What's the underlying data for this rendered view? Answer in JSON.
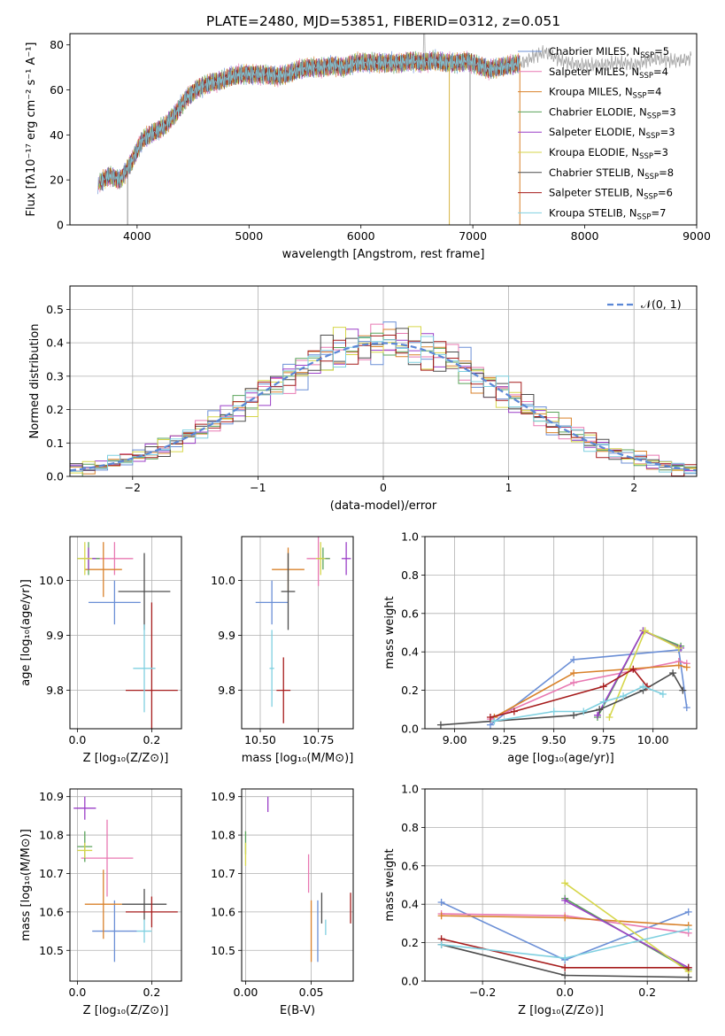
{
  "series_colors": [
    "#6b8fd6",
    "#e879b2",
    "#d9822b",
    "#5aa35a",
    "#9b3fc7",
    "#d6d64a",
    "#4d4d4d",
    "#a61c1c",
    "#7fd0e0"
  ],
  "chart_data": [
    {
      "id": "spectrum",
      "type": "line",
      "title": "PLATE=2480, MJD=53851, FIBERID=0312, z=0.051",
      "xlabel": "wavelength [Angstrom, rest frame]",
      "ylabel": "Flux [fλ10⁻¹⁷ erg cm⁻² s⁻¹ A⁻¹]",
      "xlim": [
        3400,
        9000
      ],
      "ylim": [
        0,
        85
      ],
      "xticks": [
        "4000",
        "5000",
        "6000",
        "7000",
        "8000",
        "9000"
      ],
      "yticks": [
        "0",
        "20",
        "40",
        "60",
        "80"
      ],
      "grid": false,
      "legend_position": "top-right",
      "continuum": {
        "x": [
          3650,
          3750,
          3850,
          3950,
          4050,
          4150,
          4250,
          4350,
          4450,
          4550,
          4650,
          4750,
          4850,
          4950,
          5050,
          5150,
          5250,
          5350,
          5450,
          5550,
          5650,
          5750,
          5850,
          5950,
          6050,
          6150,
          6250,
          6350,
          6450,
          6550,
          6650,
          6750,
          6850,
          6950,
          7050,
          7150,
          7250,
          7350,
          7450,
          7550,
          7650,
          7750,
          7850,
          7950,
          8050,
          8150,
          8250,
          8350,
          8450,
          8550,
          8650,
          8750,
          8850,
          8950
        ],
        "y": [
          18,
          22,
          20,
          28,
          38,
          41,
          44,
          50,
          57,
          61,
          63,
          64,
          66,
          67,
          67,
          67,
          66,
          67,
          69,
          70,
          70,
          71,
          70,
          72,
          72,
          72,
          72,
          72,
          73,
          72,
          73,
          72,
          72,
          73,
          71,
          69,
          70,
          71,
          72,
          75,
          77,
          74,
          72,
          71,
          71,
          71,
          72,
          72,
          71,
          73,
          74,
          73,
          73,
          74
        ]
      },
      "series": [
        {
          "name": "Chabrier MILES, N_SSP=5"
        },
        {
          "name": "Salpeter MILES, N_SSP=4"
        },
        {
          "name": "Kroupa MILES, N_SSP=4"
        },
        {
          "name": "Chabrier ELODIE, N_SSP=3"
        },
        {
          "name": "Salpeter ELODIE, N_SSP=3"
        },
        {
          "name": "Kroupa ELODIE, N_SSP=3"
        },
        {
          "name": "Chabrier STELIB, N_SSP=8"
        },
        {
          "name": "Salpeter STELIB, N_SSP=6"
        },
        {
          "name": "Kroupa STELIB, N_SSP=7"
        }
      ]
    },
    {
      "id": "residuals",
      "type": "line",
      "xlabel": "(data-model)/error",
      "ylabel": "Normed distribution",
      "xlim": [
        -2.5,
        2.5
      ],
      "ylim": [
        0,
        0.57
      ],
      "xticks": [
        "−2",
        "−1",
        "0",
        "1",
        "2"
      ],
      "yticks": [
        "0.0",
        "0.1",
        "0.2",
        "0.3",
        "0.4",
        "0.5"
      ],
      "grid": true,
      "legend_position": "top-right",
      "reference_label": "𝒩(0, 1)",
      "bin_width": 0.1
    },
    {
      "id": "age-vs-Z",
      "type": "scatter",
      "xlabel": "Z [log₁₀(Z/Z⊙)]",
      "ylabel": "age  [log₁₀(age/yr)]",
      "xlim": [
        -0.02,
        0.28
      ],
      "ylim": [
        9.73,
        10.08
      ],
      "xticks": [
        "0.0",
        "0.2"
      ],
      "yticks": [
        "9.8",
        "9.9",
        "10.0"
      ],
      "grid": true,
      "points": [
        {
          "x": 0.1,
          "y": 9.96,
          "xerr": 0.07,
          "yerr": 0.04
        },
        {
          "x": 0.1,
          "y": 10.04,
          "xerr": 0.05,
          "yerr": 0.03
        },
        {
          "x": 0.07,
          "y": 10.02,
          "xerr": 0.05,
          "yerr": 0.05
        },
        {
          "x": 0.03,
          "y": 10.04,
          "xerr": 0.03,
          "yerr": 0.03
        },
        {
          "x": 0.03,
          "y": 10.04,
          "xerr": 0.02,
          "yerr": 0.02
        },
        {
          "x": 0.02,
          "y": 10.04,
          "xerr": 0.02,
          "yerr": 0.03
        },
        {
          "x": 0.18,
          "y": 9.98,
          "xerr": 0.07,
          "yerr": 0.07
        },
        {
          "x": 0.2,
          "y": 9.8,
          "xerr": 0.07,
          "yerr": 0.16
        },
        {
          "x": 0.18,
          "y": 9.84,
          "xerr": 0.03,
          "yerr": 0.08
        }
      ]
    },
    {
      "id": "age-vs-mass",
      "type": "scatter",
      "xlabel": "mass [log₁₀(M/M⊙)]",
      "ylabel": "",
      "xlim": [
        10.42,
        10.9
      ],
      "ylim": [
        9.73,
        10.08
      ],
      "xticks": [
        "10.50",
        "10.75"
      ],
      "yticks": [
        "9.8",
        "9.9",
        "10.0"
      ],
      "grid": true,
      "points": [
        {
          "x": 10.55,
          "y": 9.96,
          "xerr": 0.07,
          "yerr": 0.04
        },
        {
          "x": 10.75,
          "y": 10.04,
          "xerr": 0.05,
          "yerr": 0.05
        },
        {
          "x": 10.62,
          "y": 10.02,
          "xerr": 0.07,
          "yerr": 0.04
        },
        {
          "x": 10.77,
          "y": 10.04,
          "xerr": 0.03,
          "yerr": 0.02
        },
        {
          "x": 10.87,
          "y": 10.04,
          "xerr": 0.02,
          "yerr": 0.03
        },
        {
          "x": 10.76,
          "y": 10.04,
          "xerr": 0.02,
          "yerr": 0.03
        },
        {
          "x": 10.62,
          "y": 9.98,
          "xerr": 0.03,
          "yerr": 0.07
        },
        {
          "x": 10.6,
          "y": 9.8,
          "xerr": 0.03,
          "yerr": 0.06
        },
        {
          "x": 10.55,
          "y": 9.84,
          "xerr": 0.01,
          "yerr": 0.07
        }
      ]
    },
    {
      "id": "mass-weight-vs-age",
      "type": "line",
      "xlabel": "age  [log₁₀(age/yr)]",
      "ylabel": "mass weight",
      "xlim": [
        8.85,
        10.22
      ],
      "ylim": [
        0,
        1
      ],
      "xticks": [
        "9.00",
        "9.25",
        "9.50",
        "9.75",
        "10.00"
      ],
      "yticks": [
        "0.0",
        "0.2",
        "0.4",
        "0.6",
        "0.8",
        "1.0"
      ],
      "grid": true,
      "series": [
        {
          "x": [
            9.18,
            9.6,
            10.13,
            10.17
          ],
          "y": [
            0.02,
            0.36,
            0.41,
            0.11
          ]
        },
        {
          "x": [
            9.18,
            9.6,
            10.13,
            10.17
          ],
          "y": [
            0.05,
            0.24,
            0.35,
            0.34
          ]
        },
        {
          "x": [
            9.2,
            9.6,
            10.13,
            10.17
          ],
          "y": [
            0.06,
            0.29,
            0.33,
            0.32
          ]
        },
        {
          "x": [
            9.72,
            9.95,
            10.14
          ],
          "y": [
            0.06,
            0.51,
            0.43
          ]
        },
        {
          "x": [
            9.72,
            9.95,
            10.14
          ],
          "y": [
            0.07,
            0.51,
            0.42
          ]
        },
        {
          "x": [
            9.78,
            9.96,
            10.13
          ],
          "y": [
            0.06,
            0.51,
            0.42
          ]
        },
        {
          "x": [
            8.93,
            9.6,
            9.73,
            9.95,
            10.1,
            10.15
          ],
          "y": [
            0.02,
            0.07,
            0.1,
            0.2,
            0.29,
            0.2
          ]
        },
        {
          "x": [
            9.18,
            9.3,
            9.75,
            9.9,
            9.97
          ],
          "y": [
            0.06,
            0.09,
            0.22,
            0.31,
            0.22
          ]
        },
        {
          "x": [
            9.2,
            9.5,
            9.65,
            9.75,
            9.85,
            9.95,
            10.05
          ],
          "y": [
            0.04,
            0.09,
            0.09,
            0.14,
            0.17,
            0.22,
            0.18
          ]
        }
      ]
    },
    {
      "id": "mass-vs-Z",
      "type": "scatter",
      "xlabel": "Z [log₁₀(Z/Z⊙)]",
      "ylabel": "mass [log₁₀(M/M⊙)]",
      "xlim": [
        -0.02,
        0.28
      ],
      "ylim": [
        10.42,
        10.92
      ],
      "xticks": [
        "0.0",
        "0.2"
      ],
      "yticks": [
        "10.5",
        "10.6",
        "10.7",
        "10.8",
        "10.9"
      ],
      "grid": true,
      "points": [
        {
          "x": 0.1,
          "y": 10.55,
          "xerr": 0.06,
          "yerr": 0.08
        },
        {
          "x": 0.08,
          "y": 10.74,
          "xerr": 0.07,
          "yerr": 0.1
        },
        {
          "x": 0.07,
          "y": 10.62,
          "xerr": 0.05,
          "yerr": 0.09
        },
        {
          "x": 0.02,
          "y": 10.77,
          "xerr": 0.02,
          "yerr": 0.04
        },
        {
          "x": 0.02,
          "y": 10.87,
          "xerr": 0.03,
          "yerr": 0.03
        },
        {
          "x": 0.02,
          "y": 10.76,
          "xerr": 0.02,
          "yerr": 0.02
        },
        {
          "x": 0.18,
          "y": 10.62,
          "xerr": 0.06,
          "yerr": 0.04
        },
        {
          "x": 0.2,
          "y": 10.6,
          "xerr": 0.07,
          "yerr": 0.04
        },
        {
          "x": 0.18,
          "y": 10.55,
          "xerr": 0.02,
          "yerr": 0.03
        }
      ]
    },
    {
      "id": "mass-vs-EBV",
      "type": "scatter",
      "xlabel": "E(B-V)",
      "ylabel": "",
      "xlim": [
        -0.003,
        0.082
      ],
      "ylim": [
        10.42,
        10.92
      ],
      "xticks": [
        "0.00",
        "0.05"
      ],
      "yticks": [
        "10.5",
        "10.6",
        "10.7",
        "10.8",
        "10.9"
      ],
      "grid": true,
      "points": [
        {
          "x": 0.055,
          "y": 10.55,
          "xerr": 0,
          "yerr": 0.08
        },
        {
          "x": 0.048,
          "y": 10.7,
          "xerr": 0,
          "yerr": 0.05
        },
        {
          "x": 0.05,
          "y": 10.55,
          "xerr": 0,
          "yerr": 0.08
        },
        {
          "x": 0.0,
          "y": 10.78,
          "xerr": 0,
          "yerr": 0.03
        },
        {
          "x": 0.017,
          "y": 10.88,
          "xerr": 0,
          "yerr": 0.02
        },
        {
          "x": 0.0,
          "y": 10.75,
          "xerr": 0,
          "yerr": 0.03
        },
        {
          "x": 0.058,
          "y": 10.61,
          "xerr": 0,
          "yerr": 0.04
        },
        {
          "x": 0.08,
          "y": 10.61,
          "xerr": 0,
          "yerr": 0.04
        },
        {
          "x": 0.061,
          "y": 10.56,
          "xerr": 0,
          "yerr": 0.02
        }
      ]
    },
    {
      "id": "mass-weight-vs-Z",
      "type": "line",
      "xlabel": "Z [log₁₀(Z/Z⊙)]",
      "ylabel": "mass weight",
      "xlim": [
        -0.34,
        0.32
      ],
      "ylim": [
        0,
        1
      ],
      "xticks": [
        "−0.2",
        "0.0",
        "0.2"
      ],
      "yticks": [
        "0.0",
        "0.2",
        "0.4",
        "0.6",
        "0.8",
        "1.0"
      ],
      "grid": true,
      "series": [
        {
          "x": [
            -0.3,
            0.0,
            0.3
          ],
          "y": [
            0.41,
            0.11,
            0.36
          ]
        },
        {
          "x": [
            -0.3,
            0.0,
            0.3
          ],
          "y": [
            0.35,
            0.34,
            0.25
          ]
        },
        {
          "x": [
            -0.3,
            0.0,
            0.3
          ],
          "y": [
            0.34,
            0.33,
            0.29
          ]
        },
        {
          "x": [
            0.0,
            0.3
          ],
          "y": [
            0.43,
            0.06
          ]
        },
        {
          "x": [
            0.0,
            0.3
          ],
          "y": [
            0.42,
            0.07
          ]
        },
        {
          "x": [
            0.0,
            0.3
          ],
          "y": [
            0.51,
            0.05
          ]
        },
        {
          "x": [
            -0.3,
            0.0,
            0.3
          ],
          "y": [
            0.19,
            0.03,
            0.02
          ]
        },
        {
          "x": [
            -0.3,
            0.0,
            0.3
          ],
          "y": [
            0.22,
            0.07,
            0.07
          ]
        },
        {
          "x": [
            -0.3,
            0.0,
            0.3
          ],
          "y": [
            0.19,
            0.12,
            0.27
          ]
        }
      ]
    }
  ]
}
